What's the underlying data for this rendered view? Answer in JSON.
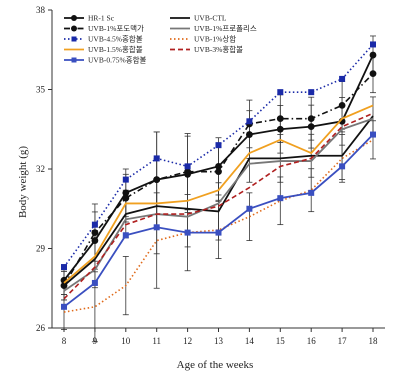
{
  "chart_data": {
    "type": "line",
    "title": "",
    "xlabel": "Age of the weeks",
    "ylabel": "Body weight (g)",
    "x": [
      8,
      9,
      10,
      11,
      12,
      13,
      14,
      15,
      16,
      17,
      18
    ],
    "xlim": [
      8,
      18
    ],
    "ylim": [
      26,
      38
    ],
    "yticks": [
      26,
      29,
      32,
      35,
      38
    ],
    "grid": false,
    "legend_position": "top-left, two columns",
    "series": [
      {
        "name": "HR-1 Sc",
        "color": "#111111",
        "line_style": "solid",
        "marker": "circle",
        "values": [
          27.8,
          29.3,
          31.1,
          31.6,
          31.8,
          32.1,
          33.3,
          33.5,
          33.6,
          33.8,
          36.3
        ]
      },
      {
        "name": "UVB-CTL",
        "color": "#111111",
        "line_style": "solid",
        "marker": "none",
        "values": [
          27.6,
          28.6,
          30.3,
          30.6,
          30.5,
          30.4,
          32.4,
          32.4,
          32.5,
          32.5,
          34.0
        ]
      },
      {
        "name": "UVB-1%포도맥가",
        "color": "#111111",
        "line_style": "dashdot",
        "marker": "circle",
        "values": [
          27.6,
          29.6,
          30.9,
          31.6,
          31.9,
          31.9,
          33.7,
          33.9,
          33.9,
          34.4,
          35.6
        ]
      },
      {
        "name": "UVB-1%프로폴리스",
        "color": "#777777",
        "line_style": "solid",
        "marker": "none",
        "values": [
          27.4,
          28.2,
          30.1,
          30.3,
          30.2,
          30.7,
          32.2,
          32.3,
          32.3,
          33.5,
          33.9
        ]
      },
      {
        "name": "UVB-4.5%홍합볼",
        "color": "#1a2aa8",
        "line_style": "dotted",
        "marker": "square",
        "values": [
          28.3,
          29.9,
          31.6,
          32.4,
          32.1,
          32.9,
          33.8,
          34.9,
          34.9,
          35.4,
          36.7
        ]
      },
      {
        "name": "UVB-1%상합",
        "color": "#e06a1a",
        "line_style": "dotted",
        "marker": "none",
        "values": [
          26.6,
          26.8,
          27.6,
          29.3,
          29.6,
          29.7,
          30.2,
          30.8,
          31.2,
          32.4,
          33.1
        ]
      },
      {
        "name": "UVB-1.5%홍합볼",
        "color": "#f0a020",
        "line_style": "solid",
        "marker": "none",
        "values": [
          27.7,
          28.7,
          30.7,
          30.7,
          30.8,
          31.2,
          32.6,
          33.1,
          32.6,
          33.9,
          34.4
        ]
      },
      {
        "name": "UVB-3%홍합볼",
        "color": "#b02020",
        "line_style": "dashed",
        "marker": "none",
        "values": [
          27.1,
          28.3,
          29.9,
          30.3,
          30.3,
          30.6,
          31.3,
          32.1,
          32.4,
          33.6,
          34.1
        ]
      },
      {
        "name": "UVB-0.75%홍합볼",
        "color": "#3a4fc0",
        "line_style": "solid",
        "marker": "square",
        "values": [
          26.8,
          27.7,
          29.5,
          29.8,
          29.6,
          29.6,
          30.5,
          30.9,
          31.1,
          32.1,
          33.3
        ]
      }
    ]
  }
}
